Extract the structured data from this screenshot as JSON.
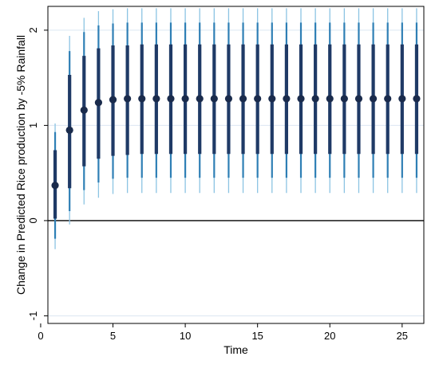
{
  "chart_data": {
    "type": "scatter",
    "xlabel": "Time",
    "ylabel": "Change in Predicted Rice production by -5% Rainfall",
    "xlim": [
      0.5,
      26.5
    ],
    "ylim": [
      -1.08,
      2.25
    ],
    "x_ticks": [
      0,
      5,
      10,
      15,
      20,
      25
    ],
    "x_tick_labels": [
      "0",
      "5",
      "10",
      "15",
      "20",
      "25"
    ],
    "y_ticks": [
      -1,
      0,
      1,
      2
    ],
    "y_tick_labels": [
      "-1",
      "0",
      "1",
      "2"
    ],
    "grid": "horizontal",
    "reference_line_y": 0,
    "colors": {
      "point": "#1a2b4c",
      "inner_band": "#1f3a66",
      "middle_band": "#2e7fb5",
      "outer_band": "#8cc4e3",
      "grid": "#dce6f2",
      "frame": "#000000"
    },
    "series": [
      {
        "x": [
          1,
          2,
          3,
          4,
          5,
          6,
          7,
          8,
          9,
          10,
          11,
          12,
          13,
          14,
          15,
          16,
          17,
          18,
          19,
          20,
          21,
          22,
          23,
          24,
          25,
          26
        ],
        "estimate": [
          0.37,
          0.95,
          1.16,
          1.24,
          1.27,
          1.28,
          1.28,
          1.28,
          1.28,
          1.28,
          1.28,
          1.28,
          1.28,
          1.28,
          1.28,
          1.28,
          1.28,
          1.28,
          1.28,
          1.28,
          1.28,
          1.28,
          1.28,
          1.28,
          1.28,
          1.28
        ],
        "inner_low": [
          0.02,
          0.34,
          0.57,
          0.65,
          0.68,
          0.69,
          0.7,
          0.7,
          0.7,
          0.7,
          0.7,
          0.7,
          0.7,
          0.7,
          0.7,
          0.7,
          0.7,
          0.7,
          0.7,
          0.7,
          0.7,
          0.7,
          0.7,
          0.7,
          0.7,
          0.7
        ],
        "inner_high": [
          0.74,
          1.53,
          1.73,
          1.81,
          1.84,
          1.84,
          1.85,
          1.85,
          1.85,
          1.85,
          1.85,
          1.85,
          1.85,
          1.85,
          1.85,
          1.85,
          1.85,
          1.85,
          1.85,
          1.85,
          1.85,
          1.85,
          1.85,
          1.85,
          1.85,
          1.85
        ],
        "middle_low": [
          -0.19,
          0.1,
          0.32,
          0.4,
          0.44,
          0.45,
          0.45,
          0.45,
          0.45,
          0.45,
          0.45,
          0.45,
          0.45,
          0.45,
          0.45,
          0.45,
          0.45,
          0.45,
          0.45,
          0.45,
          0.45,
          0.45,
          0.45,
          0.45,
          0.45,
          0.45
        ],
        "middle_high": [
          0.93,
          1.78,
          1.98,
          2.05,
          2.07,
          2.08,
          2.08,
          2.08,
          2.08,
          2.08,
          2.08,
          2.08,
          2.08,
          2.08,
          2.08,
          2.08,
          2.08,
          2.08,
          2.08,
          2.08,
          2.08,
          2.08,
          2.08,
          2.08,
          2.08,
          2.08
        ],
        "outer_low": [
          -0.3,
          -0.04,
          0.17,
          0.24,
          0.28,
          0.29,
          0.29,
          0.29,
          0.29,
          0.29,
          0.29,
          0.29,
          0.29,
          0.29,
          0.29,
          0.29,
          0.29,
          0.29,
          0.29,
          0.29,
          0.29,
          0.29,
          0.29,
          0.29,
          0.29,
          0.29
        ],
        "outer_high": [
          1.02,
          1.94,
          2.13,
          2.2,
          2.22,
          2.23,
          2.23,
          2.23,
          2.23,
          2.23,
          2.23,
          2.23,
          2.23,
          2.23,
          2.23,
          2.23,
          2.23,
          2.23,
          2.23,
          2.23,
          2.23,
          2.23,
          2.23,
          2.23,
          2.23,
          2.23
        ]
      }
    ]
  }
}
